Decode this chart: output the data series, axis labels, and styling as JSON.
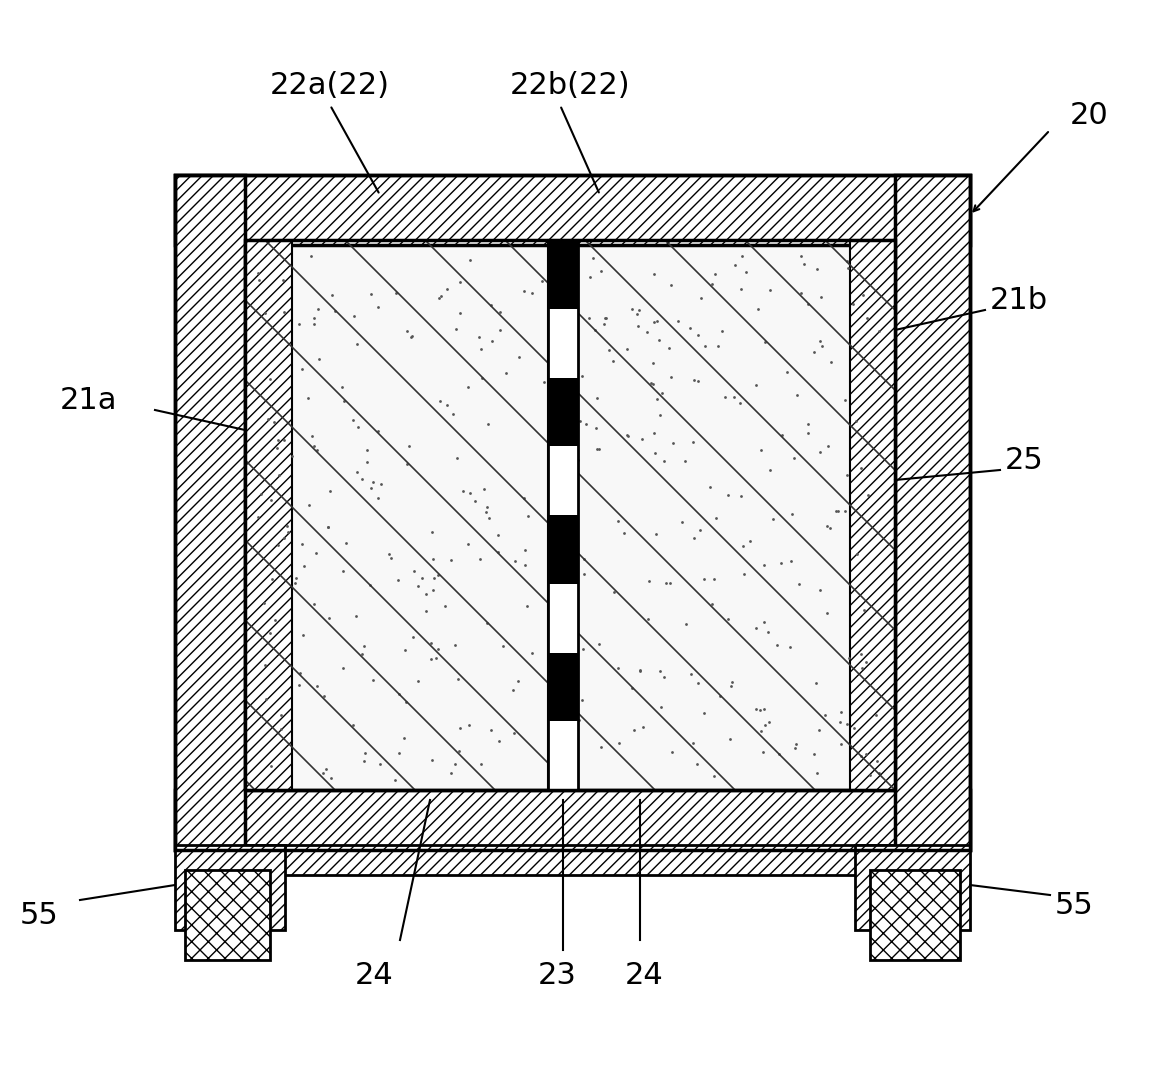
{
  "bg_color": "#ffffff",
  "line_color": "#000000",
  "hatch_color": "#000000",
  "fill_color": "#ffffff",
  "dot_fill": "#f5f5f5",
  "component_label_20": "20",
  "component_label_21a": "21a",
  "component_label_21b": "21b",
  "component_label_22a": "22a(22)",
  "component_label_22b": "22b(22)",
  "component_label_23": "23",
  "component_label_24a": "24",
  "component_label_24b": "24",
  "component_label_25": "25",
  "component_label_55a": "55",
  "component_label_55b": "55",
  "font_size_labels": 22
}
